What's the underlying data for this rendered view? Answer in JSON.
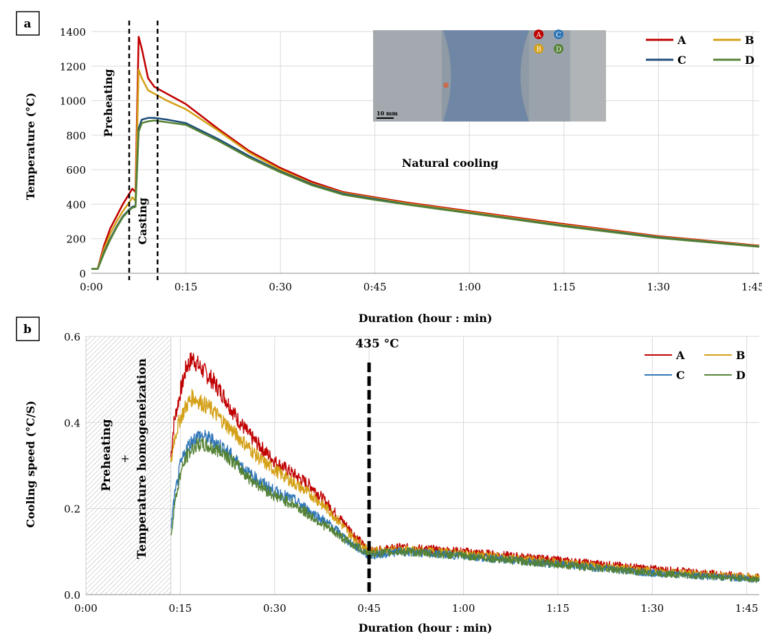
{
  "colors": {
    "A": "#c00000",
    "B": "#d4a017",
    "C_a": "#1f4e79",
    "C_b": "#2e75b6",
    "D": "#548235",
    "grid": "#d9d9d9"
  },
  "chart_data": [
    {
      "panel_label": "a",
      "type": "line",
      "xlabel": "Duration (hour : min)",
      "ylabel": "Temperature (°C)",
      "xlim_min": [
        0,
        106
      ],
      "ylim": [
        0,
        1400
      ],
      "x_ticks": [
        "0:00",
        "0:15",
        "0:30",
        "0:45",
        "1:00",
        "1:15",
        "1:30",
        "1:45"
      ],
      "y_ticks": [
        "0",
        "200",
        "400",
        "600",
        "800",
        "1000",
        "1200",
        "1400"
      ],
      "legend": [
        "A",
        "B",
        "C",
        "D"
      ],
      "legend_position": "top-right",
      "grid": true,
      "annotations": {
        "preheating": "Preheating",
        "casting": "Casting",
        "natural_cooling": "Natural cooling"
      },
      "vlines_min": [
        6,
        10.5
      ],
      "inset": {
        "scale_label": "10 mm",
        "markers": [
          "A",
          "B",
          "C",
          "D"
        ]
      },
      "series": [
        {
          "name": "A",
          "x": [
            0,
            1,
            2,
            3,
            4,
            5,
            6,
            6.5,
            7,
            7.5,
            8,
            9,
            10,
            12,
            15,
            20,
            25,
            30,
            35,
            40,
            45,
            50,
            60,
            75,
            90,
            106
          ],
          "y": [
            25,
            25,
            160,
            260,
            330,
            400,
            460,
            490,
            470,
            1370,
            1300,
            1130,
            1080,
            1040,
            980,
            840,
            710,
            610,
            530,
            470,
            440,
            410,
            360,
            285,
            215,
            160
          ]
        },
        {
          "name": "B",
          "x": [
            0,
            1,
            2,
            3,
            4,
            5,
            6,
            6.5,
            7,
            7.5,
            8,
            9,
            10,
            12,
            15,
            20,
            25,
            30,
            35,
            40,
            45,
            50,
            60,
            75,
            90,
            106
          ],
          "y": [
            25,
            25,
            140,
            230,
            300,
            360,
            410,
            440,
            420,
            1180,
            1130,
            1060,
            1040,
            1000,
            950,
            830,
            700,
            600,
            520,
            465,
            435,
            405,
            355,
            280,
            212,
            158
          ]
        },
        {
          "name": "C",
          "x": [
            0,
            1,
            2,
            3,
            4,
            5,
            6,
            6.5,
            7,
            7.5,
            8,
            9,
            10,
            12,
            15,
            20,
            25,
            30,
            35,
            40,
            45,
            50,
            60,
            75,
            90,
            106
          ],
          "y": [
            25,
            25,
            120,
            200,
            270,
            330,
            370,
            385,
            390,
            840,
            890,
            900,
            900,
            890,
            870,
            780,
            680,
            590,
            515,
            460,
            430,
            400,
            350,
            275,
            208,
            155
          ]
        },
        {
          "name": "D",
          "x": [
            0,
            1,
            2,
            3,
            4,
            5,
            6,
            6.5,
            7,
            7.5,
            8,
            9,
            10,
            12,
            15,
            20,
            25,
            30,
            35,
            40,
            45,
            50,
            60,
            75,
            90,
            106
          ],
          "y": [
            25,
            25,
            115,
            195,
            265,
            325,
            365,
            380,
            385,
            820,
            870,
            880,
            885,
            875,
            860,
            770,
            670,
            585,
            510,
            455,
            425,
            398,
            348,
            272,
            205,
            153
          ]
        }
      ]
    },
    {
      "panel_label": "b",
      "type": "line",
      "xlabel": "Duration (hour : min)",
      "ylabel": "Cooling speed (°C/S)",
      "xlim_min": [
        0,
        107
      ],
      "ylim": [
        0,
        0.6
      ],
      "x_ticks": [
        "0:00",
        "0:15",
        "0:30",
        "0:45",
        "1:00",
        "1:15",
        "1:30",
        "1:45"
      ],
      "y_ticks": [
        "0.0",
        "0.2",
        "0.4",
        "0.6"
      ],
      "legend": [
        "A",
        "B",
        "C",
        "D"
      ],
      "legend_position": "top-right",
      "grid": true,
      "shaded_region_min": [
        0,
        13.5
      ],
      "annotations": {
        "preheating": "Preheating",
        "plus": "+",
        "homogenization": "Temperature homogeneization",
        "threshold": "435 °C"
      },
      "vline_min": 45,
      "series": [
        {
          "name": "A",
          "x": [
            13.5,
            14,
            15,
            16,
            17,
            18,
            20,
            22,
            24,
            26,
            28,
            30,
            33,
            36,
            39,
            42,
            45,
            50,
            60,
            75,
            90,
            107
          ],
          "y": [
            0.32,
            0.4,
            0.47,
            0.53,
            0.55,
            0.53,
            0.5,
            0.46,
            0.41,
            0.37,
            0.34,
            0.31,
            0.28,
            0.25,
            0.2,
            0.15,
            0.1,
            0.11,
            0.1,
            0.08,
            0.06,
            0.04
          ]
        },
        {
          "name": "B",
          "x": [
            13.5,
            14,
            15,
            16,
            17,
            18,
            20,
            22,
            24,
            26,
            28,
            30,
            33,
            36,
            39,
            42,
            45,
            50,
            60,
            75,
            90,
            107
          ],
          "y": [
            0.3,
            0.36,
            0.41,
            0.44,
            0.46,
            0.45,
            0.43,
            0.4,
            0.37,
            0.34,
            0.31,
            0.29,
            0.26,
            0.23,
            0.19,
            0.14,
            0.1,
            0.105,
            0.095,
            0.075,
            0.055,
            0.04
          ]
        },
        {
          "name": "C",
          "x": [
            13.5,
            14,
            15,
            16,
            17,
            18,
            20,
            22,
            24,
            26,
            28,
            30,
            33,
            36,
            39,
            42,
            45,
            50,
            60,
            75,
            90,
            107
          ],
          "y": [
            0.15,
            0.22,
            0.3,
            0.34,
            0.36,
            0.37,
            0.36,
            0.34,
            0.31,
            0.28,
            0.26,
            0.24,
            0.22,
            0.19,
            0.16,
            0.12,
            0.09,
            0.1,
            0.09,
            0.07,
            0.05,
            0.035
          ]
        },
        {
          "name": "D",
          "x": [
            13.5,
            14,
            15,
            16,
            17,
            18,
            20,
            22,
            24,
            26,
            28,
            30,
            33,
            36,
            39,
            42,
            45,
            50,
            60,
            75,
            90,
            107
          ],
          "y": [
            0.13,
            0.2,
            0.28,
            0.32,
            0.34,
            0.35,
            0.34,
            0.33,
            0.3,
            0.27,
            0.25,
            0.23,
            0.21,
            0.18,
            0.15,
            0.12,
            0.095,
            0.1,
            0.09,
            0.07,
            0.05,
            0.035
          ]
        }
      ]
    }
  ]
}
